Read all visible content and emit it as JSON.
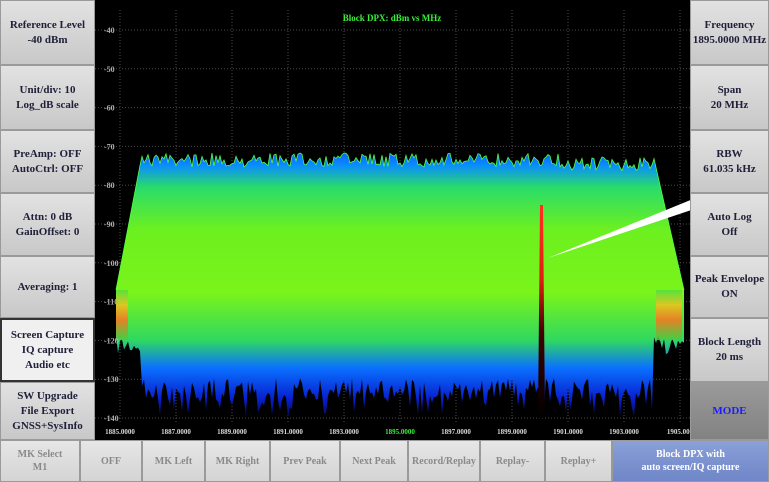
{
  "left_menu": [
    [
      "Reference Level",
      "-40 dBm"
    ],
    [
      "Unit/div: 10",
      "Log_dB scale"
    ],
    [
      "PreAmp: OFF",
      "AutoCtrl: OFF"
    ],
    [
      "Attn: 0 dB",
      "GainOffset: 0"
    ],
    [
      "Averaging: 1"
    ],
    [
      "Screen Capture",
      "IQ capture",
      "Audio etc"
    ],
    [
      "SW Upgrade",
      "File Export",
      "GNSS+SysInfo"
    ]
  ],
  "right_menu": [
    [
      "Frequency",
      "1895.0000 MHz"
    ],
    [
      "Span",
      "20 MHz"
    ],
    [
      "RBW",
      "61.035 kHz"
    ],
    [
      "Auto Log",
      "Off"
    ],
    [
      "Peak Envelope",
      "ON"
    ],
    [
      "Block Length",
      "20 ms"
    ],
    [
      "MODE"
    ]
  ],
  "bottom_menu": [
    [
      "MK Select",
      "M1"
    ],
    [
      "OFF"
    ],
    [
      "MK Left"
    ],
    [
      "MK Right"
    ],
    [
      "Prev Peak"
    ],
    [
      "Next Peak"
    ],
    [
      "Record/Replay"
    ],
    [
      "Replay-"
    ],
    [
      "Replay+"
    ],
    [
      "Block DPX with",
      "auto screen/IQ capture"
    ]
  ],
  "chart_data": {
    "type": "spectrum",
    "title": "Block DPX: dBm vs MHz",
    "xlim": [
      1885,
      1905
    ],
    "ylim": [
      -140,
      -40
    ],
    "grid": true,
    "xticks": [
      {
        "value": 1885,
        "label": "1885.0000"
      },
      {
        "value": 1887,
        "label": "1887.0000"
      },
      {
        "value": 1889,
        "label": "1889.0000"
      },
      {
        "value": 1891,
        "label": "1891.0000"
      },
      {
        "value": 1893,
        "label": "1893.0000"
      },
      {
        "value": 1895,
        "label": "1895.0000"
      },
      {
        "value": 1897,
        "label": "1897.0000"
      },
      {
        "value": 1899,
        "label": "1899.0000"
      },
      {
        "value": 1901,
        "label": "1901.0000"
      },
      {
        "value": 1903,
        "label": "1903.0000"
      },
      {
        "value": 1905,
        "label": "1905.000"
      }
    ],
    "yticks": [
      -40,
      -50,
      -60,
      -70,
      -80,
      -90,
      -100,
      -110,
      -120,
      -130,
      -140
    ]
  }
}
